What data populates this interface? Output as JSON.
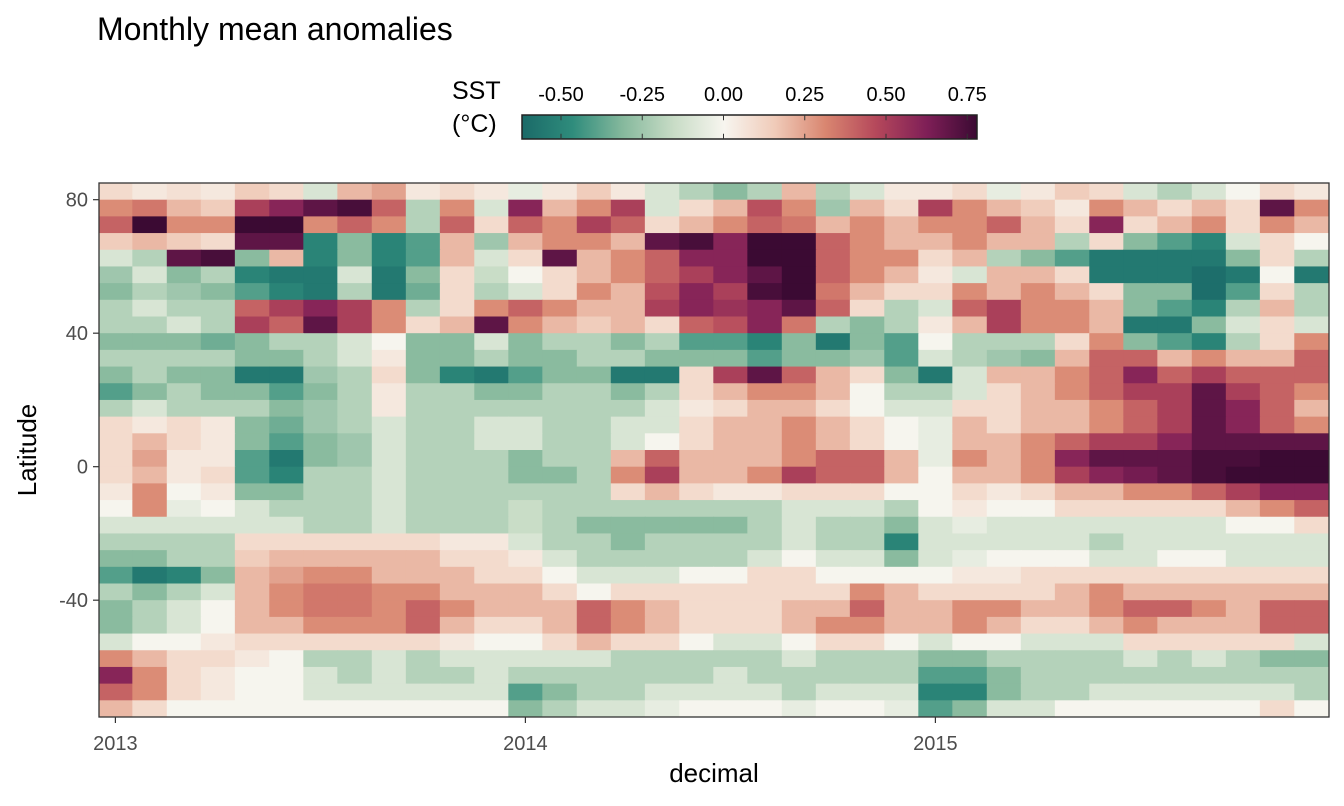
{
  "chart_data": {
    "type": "heatmap",
    "title": "Monthly mean anomalies",
    "xlabel": "decimal",
    "ylabel": "Latitude",
    "legend": {
      "title_line1": "SST",
      "title_line2": "(°C)",
      "position": "top",
      "range": [
        -0.62,
        0.78
      ],
      "ticks": [
        -0.5,
        -0.25,
        0.0,
        0.25,
        0.5,
        0.75
      ],
      "tick_labels": [
        "-0.50",
        "-0.25",
        "0.00",
        "0.25",
        "0.50",
        "0.75"
      ],
      "colors": [
        "#1a6a68",
        "#2f8c7c",
        "#86b99d",
        "#c8dcc6",
        "#f7f5ef",
        "#f0cbb9",
        "#d98670",
        "#b5485b",
        "#7f1f57",
        "#3b0a33"
      ]
    },
    "xlim": [
      2012.96,
      2015.96
    ],
    "ylim": [
      -75,
      85
    ],
    "x_ticks": [
      2013,
      2014,
      2015
    ],
    "x_tick_labels": [
      "2013",
      "2014",
      "2015"
    ],
    "y_ticks": [
      80,
      40,
      0,
      -40
    ],
    "y_tick_labels": [
      "80",
      "40",
      "0",
      "-40"
    ],
    "months": [
      2013.0,
      2013.083,
      2013.167,
      2013.25,
      2013.333,
      2013.417,
      2013.5,
      2013.583,
      2013.667,
      2013.75,
      2013.833,
      2013.917,
      2014.0,
      2014.083,
      2014.167,
      2014.25,
      2014.333,
      2014.417,
      2014.5,
      2014.583,
      2014.667,
      2014.75,
      2014.833,
      2014.917,
      2015.0,
      2015.083,
      2015.167,
      2015.25,
      2015.333,
      2015.417,
      2015.5,
      2015.583,
      2015.667,
      2015.75,
      2015.833,
      2015.917
    ],
    "latitudes": [
      82.5,
      77.5,
      72.5,
      67.5,
      62.5,
      57.5,
      52.5,
      47.5,
      42.5,
      37.5,
      32.5,
      27.5,
      22.5,
      17.5,
      12.5,
      7.5,
      2.5,
      -2.5,
      -7.5,
      -12.5,
      -17.5,
      -22.5,
      -27.5,
      -32.5,
      -37.5,
      -42.5,
      -47.5,
      -52.5,
      -57.5,
      -62.5,
      -67.5,
      -72.5
    ],
    "anomalies_degC": [
      [
        0.1,
        0.05,
        0.08,
        0.05,
        0.15,
        0.1,
        -0.1,
        0.2,
        0.25,
        0.05,
        0.1,
        0.05,
        -0.05,
        0.05,
        0.15,
        0.05,
        -0.1,
        -0.2,
        -0.3,
        -0.2,
        0.2,
        -0.2,
        -0.1,
        0.05,
        0.05,
        0.1,
        -0.05,
        0.05,
        0.15,
        0.1,
        -0.1,
        -0.2,
        -0.1,
        0.0,
        0.1,
        0.05
      ],
      [
        0.3,
        0.35,
        0.2,
        0.15,
        0.5,
        0.6,
        0.7,
        0.75,
        0.4,
        -0.2,
        0.3,
        -0.1,
        0.6,
        0.2,
        0.3,
        0.5,
        -0.1,
        0.1,
        0.2,
        0.45,
        0.3,
        -0.25,
        0.2,
        0.1,
        0.5,
        0.3,
        0.2,
        0.15,
        0.05,
        0.3,
        0.2,
        0.1,
        0.2,
        0.1,
        0.7,
        0.3
      ],
      [
        0.4,
        0.8,
        0.3,
        0.3,
        0.8,
        0.8,
        0.3,
        0.4,
        0.3,
        -0.2,
        0.4,
        0.1,
        0.4,
        0.3,
        0.5,
        0.4,
        0.1,
        0.2,
        0.3,
        0.4,
        0.35,
        0.2,
        0.3,
        0.2,
        0.3,
        0.3,
        0.4,
        0.2,
        0.1,
        0.6,
        0.1,
        0.2,
        0.3,
        0.1,
        0.3,
        0.2
      ],
      [
        0.15,
        0.2,
        0.15,
        0.1,
        0.7,
        0.7,
        -0.5,
        -0.3,
        -0.5,
        -0.4,
        0.2,
        -0.25,
        0.2,
        0.3,
        0.3,
        0.2,
        0.7,
        0.75,
        0.6,
        0.78,
        0.78,
        0.4,
        0.3,
        0.2,
        0.2,
        0.3,
        0.2,
        0.2,
        -0.2,
        0.1,
        -0.3,
        -0.4,
        -0.5,
        -0.1,
        0.1,
        0.0
      ],
      [
        -0.1,
        -0.2,
        0.7,
        0.75,
        -0.3,
        0.2,
        -0.5,
        -0.3,
        -0.5,
        -0.4,
        0.2,
        -0.1,
        0.1,
        0.7,
        0.2,
        0.3,
        0.4,
        0.6,
        0.6,
        0.78,
        0.78,
        0.4,
        0.3,
        0.3,
        0.1,
        0.2,
        -0.2,
        -0.3,
        -0.4,
        -0.55,
        -0.55,
        -0.55,
        -0.55,
        -0.3,
        0.1,
        -0.2
      ],
      [
        -0.25,
        -0.1,
        -0.3,
        -0.2,
        -0.5,
        -0.55,
        -0.55,
        -0.1,
        -0.55,
        -0.3,
        0.1,
        -0.15,
        0.0,
        0.1,
        0.2,
        0.3,
        0.4,
        0.5,
        0.6,
        0.7,
        0.78,
        0.4,
        0.3,
        0.2,
        0.05,
        -0.1,
        0.2,
        0.2,
        0.1,
        -0.55,
        -0.55,
        -0.55,
        -0.6,
        -0.55,
        0.0,
        -0.55
      ],
      [
        -0.3,
        -0.2,
        -0.25,
        -0.3,
        -0.4,
        -0.5,
        -0.55,
        -0.2,
        -0.55,
        -0.35,
        0.1,
        -0.2,
        -0.1,
        0.1,
        0.3,
        0.2,
        0.45,
        0.6,
        0.5,
        0.75,
        0.78,
        0.35,
        0.2,
        0.1,
        0.1,
        0.3,
        0.2,
        0.3,
        0.2,
        0.1,
        -0.3,
        -0.3,
        -0.6,
        -0.4,
        0.1,
        -0.2
      ],
      [
        -0.2,
        -0.1,
        -0.2,
        -0.2,
        0.4,
        0.5,
        0.6,
        0.5,
        0.3,
        -0.2,
        0.1,
        0.3,
        0.4,
        0.3,
        0.2,
        0.2,
        0.5,
        0.6,
        0.55,
        0.6,
        0.7,
        0.4,
        0.1,
        -0.2,
        -0.1,
        0.4,
        0.5,
        0.3,
        0.3,
        0.2,
        -0.3,
        -0.4,
        -0.5,
        -0.2,
        0.2,
        -0.2
      ],
      [
        -0.2,
        -0.2,
        -0.1,
        -0.2,
        0.5,
        0.4,
        0.7,
        0.5,
        0.3,
        0.1,
        0.2,
        0.7,
        0.3,
        0.2,
        0.15,
        0.2,
        0.1,
        0.4,
        0.45,
        0.6,
        0.35,
        -0.2,
        -0.3,
        -0.2,
        0.05,
        0.2,
        0.5,
        0.3,
        0.3,
        0.2,
        -0.55,
        -0.55,
        -0.3,
        -0.1,
        0.1,
        -0.1
      ],
      [
        -0.3,
        -0.3,
        -0.3,
        -0.35,
        -0.3,
        -0.2,
        -0.2,
        -0.1,
        0.0,
        -0.3,
        -0.3,
        -0.1,
        -0.3,
        -0.2,
        -0.2,
        -0.3,
        -0.2,
        -0.4,
        -0.4,
        -0.5,
        -0.3,
        -0.55,
        -0.3,
        -0.4,
        0.0,
        -0.2,
        -0.2,
        -0.2,
        0.1,
        0.3,
        -0.3,
        -0.4,
        -0.5,
        -0.2,
        0.1,
        0.3
      ],
      [
        -0.2,
        -0.2,
        -0.2,
        -0.2,
        -0.3,
        -0.3,
        -0.2,
        -0.1,
        0.05,
        -0.3,
        -0.3,
        -0.2,
        -0.3,
        -0.3,
        -0.2,
        -0.2,
        -0.3,
        -0.3,
        -0.3,
        -0.4,
        -0.3,
        -0.3,
        -0.25,
        -0.4,
        -0.1,
        -0.2,
        -0.25,
        -0.3,
        0.2,
        0.4,
        0.4,
        0.2,
        0.3,
        0.2,
        0.2,
        0.4
      ],
      [
        -0.3,
        -0.2,
        -0.3,
        -0.3,
        -0.55,
        -0.55,
        -0.25,
        -0.2,
        0.1,
        -0.3,
        -0.5,
        -0.55,
        -0.4,
        -0.3,
        -0.3,
        -0.55,
        -0.55,
        0.1,
        0.5,
        0.7,
        0.4,
        0.2,
        0.1,
        -0.3,
        -0.55,
        -0.1,
        0.2,
        0.2,
        0.3,
        0.4,
        0.6,
        0.4,
        0.5,
        0.4,
        0.4,
        0.4
      ],
      [
        -0.4,
        -0.3,
        -0.2,
        -0.3,
        -0.3,
        -0.4,
        -0.3,
        -0.2,
        0.05,
        -0.2,
        -0.2,
        -0.3,
        -0.3,
        -0.2,
        -0.2,
        -0.3,
        -0.2,
        0.1,
        0.2,
        0.3,
        0.3,
        0.2,
        0.0,
        -0.2,
        -0.2,
        -0.1,
        0.1,
        0.2,
        0.3,
        0.4,
        0.5,
        0.5,
        0.7,
        0.5,
        0.4,
        0.3
      ],
      [
        -0.2,
        -0.1,
        -0.2,
        -0.2,
        -0.2,
        -0.3,
        -0.25,
        -0.2,
        0.05,
        -0.2,
        -0.2,
        -0.2,
        -0.2,
        -0.2,
        -0.2,
        -0.2,
        -0.1,
        0.05,
        0.1,
        0.2,
        0.2,
        0.1,
        0.0,
        -0.1,
        -0.1,
        0.1,
        0.1,
        0.2,
        0.2,
        0.3,
        0.4,
        0.5,
        0.7,
        0.6,
        0.4,
        0.2
      ],
      [
        0.1,
        0.05,
        0.1,
        0.05,
        -0.3,
        -0.35,
        -0.25,
        -0.2,
        -0.1,
        -0.2,
        -0.2,
        -0.1,
        -0.1,
        -0.2,
        -0.2,
        -0.1,
        -0.1,
        0.1,
        0.2,
        0.2,
        0.3,
        0.2,
        0.1,
        0.0,
        -0.05,
        0.2,
        0.1,
        0.2,
        0.2,
        0.3,
        0.4,
        0.5,
        0.7,
        0.6,
        0.4,
        0.3
      ],
      [
        0.1,
        0.2,
        0.1,
        0.05,
        -0.3,
        -0.4,
        -0.3,
        -0.25,
        -0.1,
        -0.2,
        -0.2,
        -0.1,
        -0.1,
        -0.2,
        -0.2,
        -0.1,
        0.0,
        0.1,
        0.2,
        0.2,
        0.3,
        0.2,
        0.1,
        0.0,
        -0.05,
        0.2,
        0.2,
        0.3,
        0.4,
        0.5,
        0.5,
        0.6,
        0.7,
        0.7,
        0.7,
        0.7
      ],
      [
        0.1,
        0.25,
        0.05,
        0.05,
        -0.4,
        -0.55,
        -0.3,
        -0.25,
        -0.1,
        -0.2,
        -0.2,
        -0.2,
        -0.3,
        -0.2,
        -0.2,
        0.2,
        0.4,
        0.2,
        0.2,
        0.2,
        0.3,
        0.4,
        0.4,
        0.2,
        -0.05,
        0.3,
        0.2,
        0.3,
        0.6,
        0.7,
        0.7,
        0.7,
        0.75,
        0.75,
        0.78,
        0.78
      ],
      [
        0.1,
        0.2,
        0.05,
        0.1,
        -0.4,
        -0.5,
        -0.2,
        -0.2,
        -0.1,
        -0.2,
        -0.2,
        -0.2,
        -0.3,
        -0.3,
        -0.2,
        0.3,
        0.5,
        0.2,
        0.2,
        0.3,
        0.5,
        0.4,
        0.4,
        0.2,
        0.0,
        0.2,
        0.2,
        0.3,
        0.5,
        0.6,
        0.65,
        0.7,
        0.75,
        0.78,
        0.78,
        0.78
      ],
      [
        0.05,
        0.3,
        0.0,
        0.05,
        -0.3,
        -0.3,
        -0.2,
        -0.2,
        -0.1,
        -0.2,
        -0.2,
        -0.2,
        -0.2,
        -0.2,
        -0.2,
        0.1,
        0.2,
        0.1,
        0.05,
        0.05,
        0.1,
        0.1,
        0.1,
        0.0,
        0.0,
        0.1,
        0.05,
        0.1,
        0.2,
        0.2,
        0.3,
        0.3,
        0.4,
        0.5,
        0.6,
        0.6
      ],
      [
        0.0,
        0.3,
        -0.05,
        0.0,
        -0.1,
        -0.2,
        -0.2,
        -0.2,
        -0.1,
        -0.2,
        -0.2,
        -0.2,
        -0.15,
        -0.2,
        -0.2,
        -0.2,
        -0.2,
        -0.2,
        -0.2,
        -0.2,
        -0.1,
        -0.1,
        -0.1,
        -0.2,
        0.0,
        0.05,
        0.0,
        0.0,
        0.1,
        0.1,
        0.1,
        0.1,
        0.1,
        0.2,
        0.3,
        0.4
      ],
      [
        -0.1,
        -0.1,
        -0.1,
        -0.1,
        -0.1,
        -0.1,
        -0.2,
        -0.2,
        -0.1,
        -0.2,
        -0.2,
        -0.2,
        -0.15,
        -0.2,
        -0.3,
        -0.3,
        -0.3,
        -0.3,
        -0.3,
        -0.2,
        -0.1,
        -0.2,
        -0.2,
        -0.3,
        -0.1,
        -0.05,
        -0.1,
        -0.1,
        -0.1,
        -0.1,
        -0.1,
        -0.1,
        -0.1,
        0.0,
        0.0,
        0.1
      ],
      [
        -0.2,
        -0.2,
        -0.2,
        -0.2,
        0.1,
        0.1,
        0.1,
        0.1,
        0.1,
        0.1,
        0.05,
        0.05,
        -0.1,
        -0.2,
        -0.2,
        -0.3,
        -0.2,
        -0.2,
        -0.2,
        -0.2,
        -0.1,
        -0.2,
        -0.2,
        -0.5,
        -0.1,
        -0.1,
        -0.1,
        -0.1,
        -0.1,
        -0.2,
        -0.1,
        -0.1,
        -0.1,
        -0.1,
        -0.1,
        -0.1
      ],
      [
        -0.3,
        -0.3,
        -0.2,
        -0.2,
        0.15,
        0.2,
        0.2,
        0.2,
        0.2,
        0.2,
        0.1,
        0.1,
        0.05,
        -0.1,
        -0.2,
        -0.2,
        -0.2,
        -0.2,
        -0.2,
        -0.1,
        0.0,
        -0.1,
        -0.1,
        -0.3,
        -0.1,
        -0.05,
        0.0,
        0.0,
        0.0,
        -0.1,
        -0.1,
        0.0,
        0.0,
        -0.1,
        -0.1,
        -0.1
      ],
      [
        -0.4,
        -0.55,
        -0.5,
        -0.3,
        0.2,
        0.25,
        0.3,
        0.3,
        0.2,
        0.2,
        0.2,
        0.1,
        0.1,
        0.0,
        -0.1,
        -0.1,
        -0.1,
        0.0,
        0.0,
        0.1,
        0.1,
        0.0,
        0.0,
        0.0,
        0.0,
        0.05,
        0.05,
        0.1,
        0.1,
        0.1,
        0.1,
        0.1,
        0.1,
        0.1,
        0.1,
        0.1
      ],
      [
        -0.2,
        -0.3,
        -0.2,
        -0.1,
        0.2,
        0.3,
        0.35,
        0.35,
        0.3,
        0.3,
        0.2,
        0.2,
        0.2,
        0.1,
        0.0,
        0.1,
        0.1,
        0.1,
        0.1,
        0.1,
        0.1,
        0.1,
        0.3,
        0.2,
        0.1,
        0.1,
        0.1,
        0.1,
        0.2,
        0.3,
        0.2,
        0.2,
        0.2,
        0.2,
        0.2,
        0.2
      ],
      [
        -0.3,
        -0.2,
        -0.1,
        0.0,
        0.2,
        0.3,
        0.35,
        0.35,
        0.3,
        0.4,
        0.3,
        0.2,
        0.2,
        0.2,
        0.4,
        0.3,
        0.2,
        0.1,
        0.1,
        0.1,
        0.2,
        0.2,
        0.4,
        0.2,
        0.2,
        0.3,
        0.3,
        0.2,
        0.2,
        0.3,
        0.4,
        0.4,
        0.3,
        0.2,
        0.4,
        0.4
      ],
      [
        -0.3,
        -0.2,
        -0.1,
        0.0,
        0.2,
        0.2,
        0.3,
        0.3,
        0.3,
        0.4,
        0.2,
        0.1,
        0.1,
        0.2,
        0.4,
        0.3,
        0.2,
        0.1,
        0.1,
        0.1,
        0.2,
        0.3,
        0.3,
        0.2,
        0.2,
        0.3,
        0.2,
        0.1,
        0.1,
        0.2,
        0.3,
        0.2,
        0.2,
        0.2,
        0.4,
        0.4
      ],
      [
        -0.1,
        0.0,
        0.0,
        0.05,
        0.1,
        0.1,
        0.1,
        0.1,
        0.1,
        0.1,
        0.05,
        0.0,
        0.0,
        0.1,
        0.2,
        0.1,
        0.1,
        0.0,
        -0.1,
        -0.1,
        0.0,
        0.1,
        0.1,
        0.0,
        -0.1,
        0.0,
        0.0,
        -0.1,
        -0.1,
        -0.1,
        0.1,
        0.1,
        0.1,
        0.1,
        0.1,
        -0.1
      ],
      [
        0.3,
        0.2,
        0.1,
        0.1,
        0.05,
        0.0,
        -0.2,
        -0.2,
        -0.1,
        -0.2,
        -0.1,
        -0.1,
        -0.1,
        -0.1,
        -0.1,
        -0.2,
        -0.2,
        -0.2,
        -0.2,
        -0.2,
        -0.1,
        -0.2,
        -0.2,
        -0.2,
        -0.3,
        -0.3,
        -0.2,
        -0.2,
        -0.2,
        -0.2,
        -0.1,
        -0.2,
        -0.1,
        -0.2,
        -0.3,
        -0.3
      ],
      [
        0.6,
        0.3,
        0.1,
        0.05,
        0.0,
        0.0,
        -0.1,
        -0.2,
        -0.1,
        -0.2,
        -0.2,
        -0.1,
        -0.2,
        -0.2,
        -0.2,
        -0.2,
        -0.2,
        -0.2,
        -0.1,
        -0.2,
        -0.2,
        -0.2,
        -0.2,
        -0.2,
        -0.4,
        -0.4,
        -0.3,
        -0.2,
        -0.2,
        -0.2,
        -0.2,
        -0.2,
        -0.2,
        -0.2,
        -0.2,
        -0.2
      ],
      [
        0.4,
        0.3,
        0.1,
        0.05,
        0.0,
        0.0,
        -0.1,
        -0.1,
        -0.1,
        -0.1,
        -0.1,
        -0.1,
        -0.4,
        -0.3,
        -0.2,
        -0.2,
        -0.1,
        -0.1,
        -0.1,
        -0.1,
        -0.2,
        -0.1,
        -0.1,
        -0.1,
        -0.5,
        -0.5,
        -0.3,
        -0.2,
        -0.2,
        -0.1,
        -0.1,
        -0.1,
        -0.1,
        -0.1,
        -0.1,
        -0.2
      ],
      [
        0.2,
        0.1,
        0.0,
        0.0,
        0.0,
        0.0,
        0.0,
        0.0,
        0.0,
        0.0,
        0.0,
        0.0,
        -0.3,
        -0.2,
        -0.1,
        -0.1,
        -0.05,
        0.0,
        0.0,
        0.0,
        -0.05,
        0.0,
        0.0,
        -0.05,
        -0.4,
        -0.3,
        -0.1,
        -0.1,
        0.0,
        0.0,
        0.0,
        0.0,
        0.0,
        0.0,
        0.1,
        0.0
      ]
    ]
  }
}
